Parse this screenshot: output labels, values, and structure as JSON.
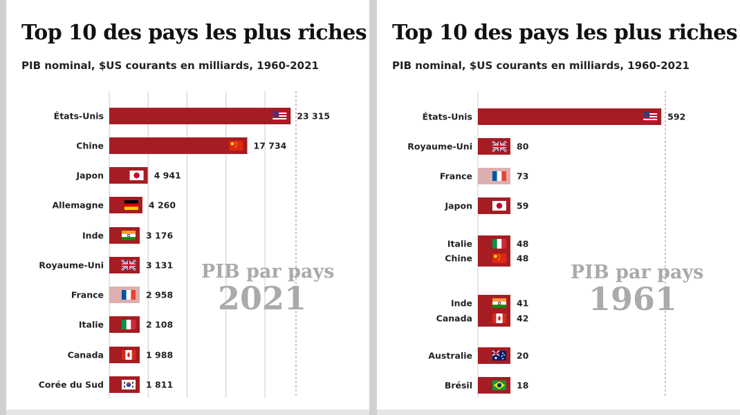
{
  "chart_data": [
    {
      "type": "bar",
      "title": "Top 10 des pays les plus riches",
      "subtitle": "PIB nominal, $US courants en milliards, 1960-2021",
      "watermark": "PIB par pays",
      "year": "2021",
      "bar_color": "#a51c22",
      "highlight_color": "#dcb0ae",
      "xlim": [
        0,
        24000
      ],
      "gridlines": [
        0,
        5000,
        10000,
        15000,
        20000
      ],
      "reference_line": 24000,
      "bars": [
        {
          "label": "États-Unis",
          "value": 23315,
          "value_label": "23 315",
          "flag": "flag-us",
          "highlight": false
        },
        {
          "label": "Chine",
          "value": 17734,
          "value_label": "17 734",
          "flag": "flag-cn",
          "highlight": false
        },
        {
          "label": "Japon",
          "value": 4941,
          "value_label": "4 941",
          "flag": "flag-jp",
          "highlight": false
        },
        {
          "label": "Allemagne",
          "value": 4260,
          "value_label": "4 260",
          "flag": "flag-de",
          "highlight": false
        },
        {
          "label": "Inde",
          "value": 3176,
          "value_label": "3 176",
          "flag": "flag-in",
          "highlight": false
        },
        {
          "label": "Royaume-Uni",
          "value": 3131,
          "value_label": "3 131",
          "flag": "flag-gb",
          "highlight": false
        },
        {
          "label": "France",
          "value": 2958,
          "value_label": "2 958",
          "flag": "flag-fr",
          "highlight": true
        },
        {
          "label": "Italie",
          "value": 2108,
          "value_label": "2 108",
          "flag": "flag-it",
          "highlight": false
        },
        {
          "label": "Canada",
          "value": 1988,
          "value_label": "1 988",
          "flag": "flag-ca",
          "highlight": false
        },
        {
          "label": "Corée du Sud",
          "value": 1811,
          "value_label": "1 811",
          "flag": "flag-kr",
          "highlight": false
        }
      ]
    },
    {
      "type": "bar",
      "title": "Top 10 des pays les plus riches",
      "subtitle": "PIB nominal, $US courants en milliards, 1960-2021",
      "watermark": "PIB par pays",
      "year": "1961",
      "bar_color": "#a51c22",
      "highlight_color": "#dcb0ae",
      "xlim": [
        0,
        605
      ],
      "gridlines": [
        0
      ],
      "reference_line": 605,
      "bars": [
        {
          "label": "États-Unis",
          "value": 592,
          "value_label": "592",
          "flag": "flag-us",
          "highlight": false
        },
        {
          "label": "Royaume-Uni",
          "value": 80,
          "value_label": "80",
          "flag": "flag-gb",
          "highlight": false
        },
        {
          "label": "France",
          "value": 73,
          "value_label": "73",
          "flag": "flag-fr",
          "highlight": true
        },
        {
          "label": "Japon",
          "value": 59,
          "value_label": "59",
          "flag": "flag-jp",
          "highlight": false
        },
        {
          "label": "Italie",
          "value": 48,
          "value_label": "48",
          "flag": "flag-it",
          "highlight": false
        },
        {
          "label": "Chine",
          "value": 48,
          "value_label": "48",
          "flag": "flag-cn",
          "highlight": false
        },
        {
          "label": "Inde",
          "value": 41,
          "value_label": "41",
          "flag": "flag-in",
          "highlight": false
        },
        {
          "label": "Canada",
          "value": 42,
          "value_label": "42",
          "flag": "flag-ca",
          "highlight": false
        },
        {
          "label": "Australie",
          "value": 20,
          "value_label": "20",
          "flag": "flag-au",
          "highlight": false
        },
        {
          "label": "Brésil",
          "value": 18,
          "value_label": "18",
          "flag": "flag-br",
          "highlight": false
        }
      ]
    }
  ]
}
